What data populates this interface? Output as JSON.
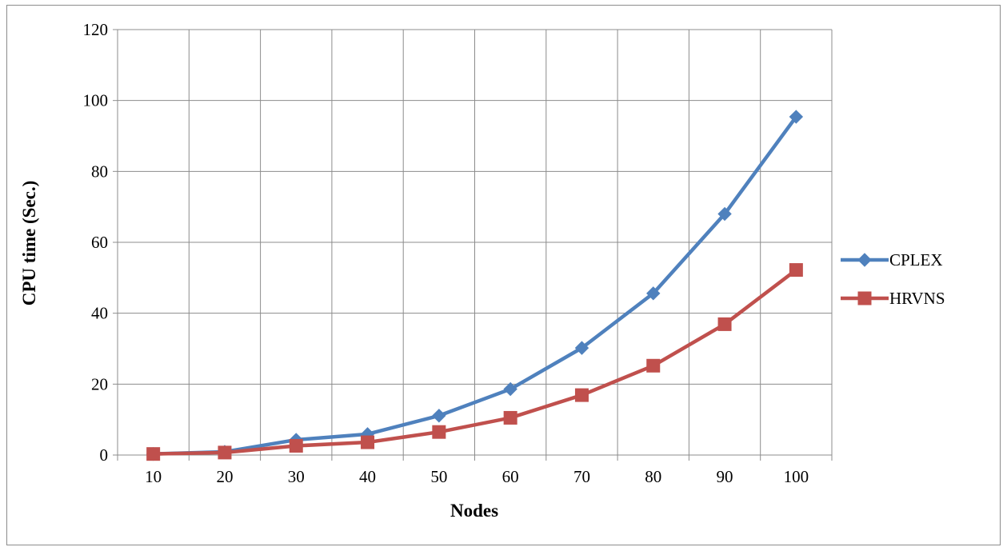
{
  "chart_data": {
    "type": "line",
    "xlabel": "Nodes",
    "ylabel": "CPU time (Sec.)",
    "categories": [
      "10",
      "20",
      "30",
      "40",
      "50",
      "60",
      "70",
      "80",
      "90",
      "100"
    ],
    "ylim": [
      0,
      120
    ],
    "yticks": [
      0,
      20,
      40,
      60,
      80,
      100,
      120
    ],
    "grid": true,
    "legend_position": "right",
    "series": [
      {
        "name": "CPLEX",
        "color": "#4f81bd",
        "marker": "diamond",
        "values": [
          0.3,
          0.9,
          4.3,
          5.9,
          11.1,
          18.6,
          30.2,
          45.6,
          68.0,
          95.4
        ]
      },
      {
        "name": "HRVNS",
        "color": "#c0504d",
        "marker": "square",
        "values": [
          0.3,
          0.7,
          2.6,
          3.6,
          6.5,
          10.5,
          16.9,
          25.2,
          36.9,
          52.2
        ]
      }
    ]
  }
}
